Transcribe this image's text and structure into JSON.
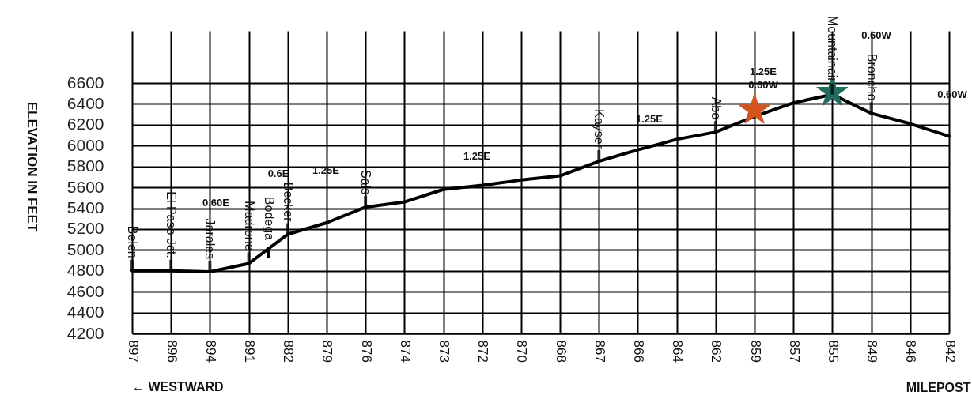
{
  "chart_data": {
    "type": "line",
    "xlabel": "MILEPOST",
    "ylabel": "ELEVATION IN FEET",
    "categories": [
      "897",
      "896",
      "894",
      "891",
      "882",
      "879",
      "876",
      "874",
      "873",
      "872",
      "870",
      "868",
      "867",
      "866",
      "864",
      "862",
      "859",
      "857",
      "855",
      "849",
      "846",
      "842"
    ],
    "ylim": [
      4200,
      7100
    ],
    "yticks": [
      4200,
      4400,
      4600,
      4800,
      5000,
      5200,
      5400,
      5600,
      5800,
      6000,
      6200,
      6400,
      6600
    ],
    "grid": true,
    "marker": "none",
    "line_style": "solid",
    "series": [
      {
        "color": "#000000",
        "values": [
          4800,
          4800,
          4790,
          4870,
          5150,
          5260,
          5410,
          5460,
          5580,
          5620,
          5670,
          5710,
          5850,
          5960,
          6060,
          6130,
          6280,
          6410,
          6490,
          6310,
          6210,
          6090
        ]
      },
      {
        "type": "scatter",
        "marker": "star",
        "color": "#d4521c",
        "x": [
          "859"
        ],
        "values": [
          6340
        ]
      },
      {
        "type": "scatter",
        "marker": "star",
        "color": "#226b5f",
        "x": [
          "855"
        ],
        "values": [
          6510
        ]
      }
    ],
    "annotations": [
      {
        "text": "Belen",
        "x": "897",
        "y": 4800
      },
      {
        "text": "El Paso Jct.",
        "x": "896",
        "y": 4800
      },
      {
        "text": "Jarales",
        "x": "894",
        "y": 4790
      },
      {
        "text": "Madrone",
        "x": "891",
        "y": 4870
      },
      "Bodega",
      {
        "text": "Becker",
        "x": "882",
        "y": 5150
      },
      {
        "text": "Sais",
        "x": "876",
        "y": 5410
      },
      {
        "text": "Kayser",
        "x": "867",
        "y": 5850
      },
      {
        "text": "Abo",
        "x": "862",
        "y": 6130
      },
      {
        "text": "Mountainair",
        "x": "855",
        "y": 6490
      },
      {
        "text": "Broncho",
        "x": "849",
        "y": 6310
      },
      "0.60E",
      "0.6E",
      "1.25E",
      "1.25E",
      "1.25E",
      "1.25E",
      "0.60W",
      "0.60W",
      "0.60W",
      "← WESTWARD"
    ]
  }
}
